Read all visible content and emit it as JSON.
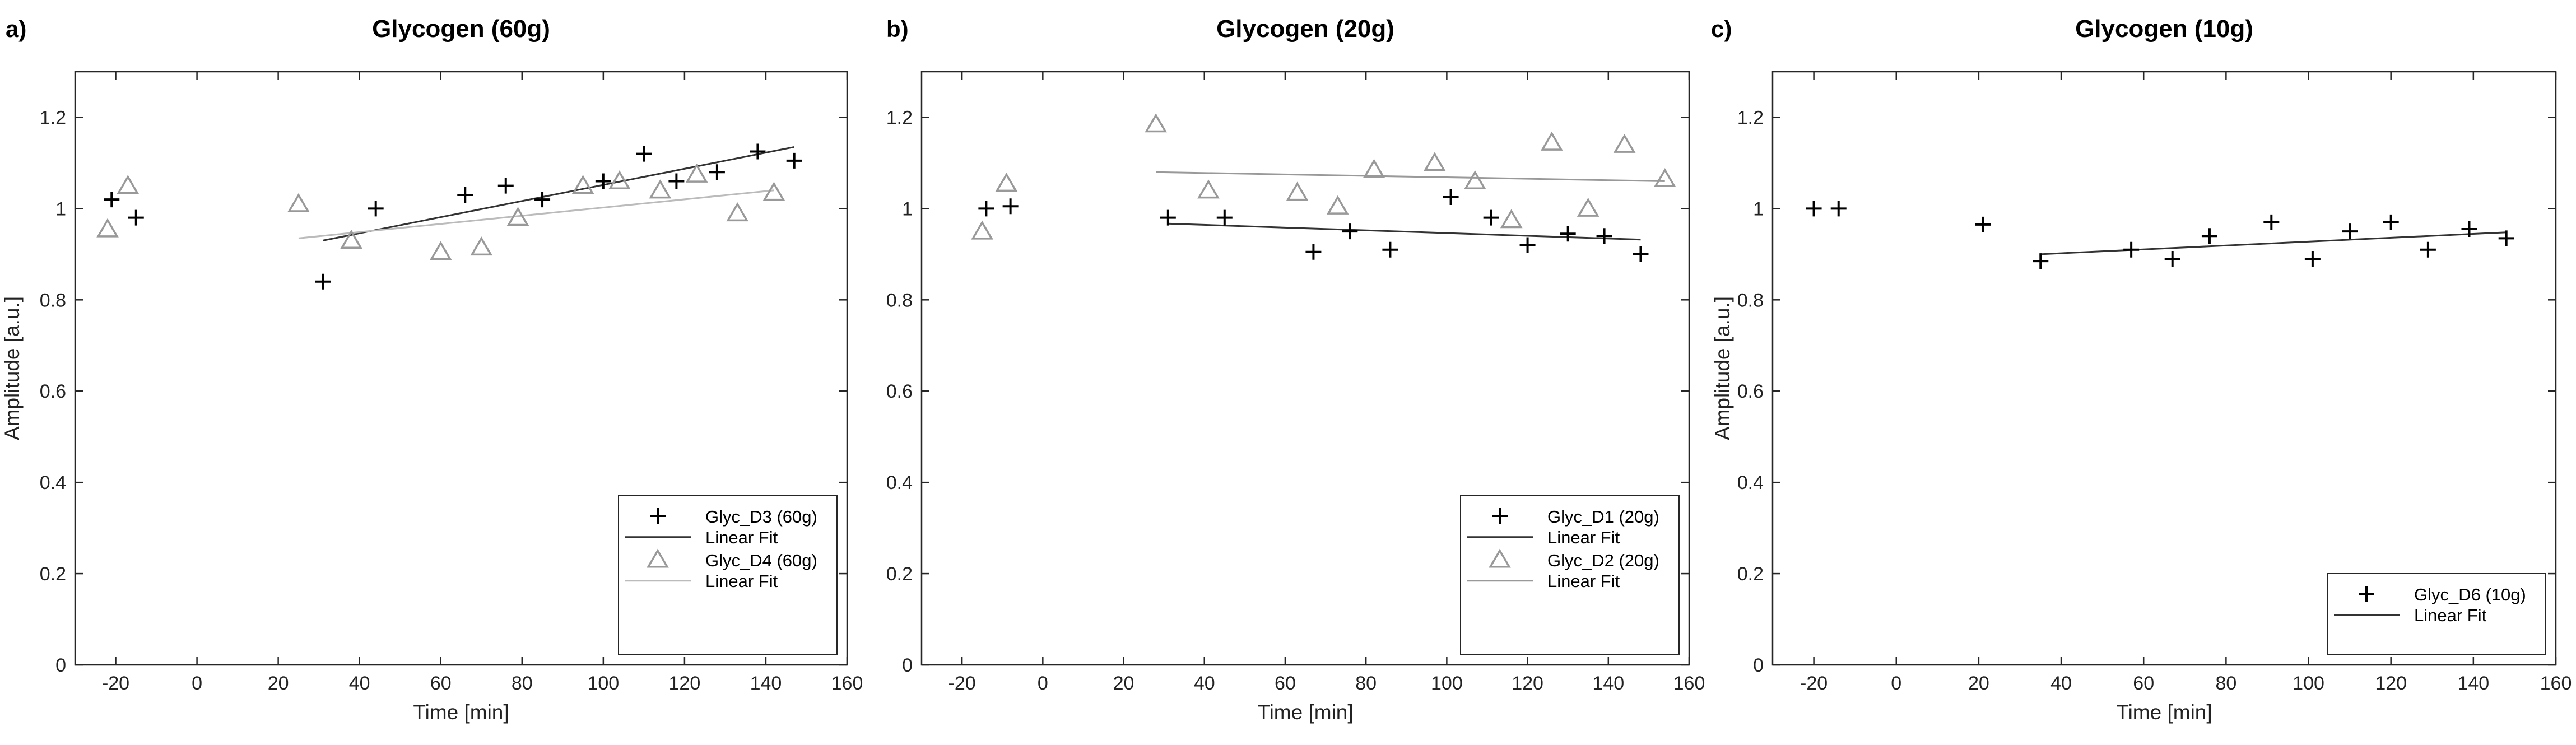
{
  "chart_data": [
    {
      "type": "scatter",
      "panel_label": "a)",
      "title": "Glycogen (60g)",
      "xlabel": "Time [min]",
      "ylabel": "Amplitude [a.u.]",
      "xlim": [
        -30,
        160
      ],
      "ylim": [
        0,
        1.3
      ],
      "xticks": [
        -20,
        0,
        20,
        40,
        60,
        80,
        100,
        120,
        140,
        160
      ],
      "yticks": [
        0,
        0.2,
        0.4,
        0.6,
        0.8,
        1,
        1.2
      ],
      "legend_position": "bottom-right",
      "series": [
        {
          "name": "Glyc_D3 (60g)",
          "marker": "plus",
          "color": "#000000",
          "x": [
            -21,
            -15,
            31,
            44,
            66,
            76,
            85,
            100,
            110,
            118,
            128,
            138,
            147
          ],
          "y": [
            1.02,
            0.98,
            0.84,
            1.0,
            1.03,
            1.05,
            1.02,
            1.06,
            1.12,
            1.06,
            1.08,
            1.125,
            1.105
          ],
          "fit": {
            "label": "Linear Fit",
            "x": [
              31,
              147
            ],
            "y": [
              0.93,
              1.135
            ],
            "color": "#333333"
          }
        },
        {
          "name": "Glyc_D4 (60g)",
          "marker": "triangle",
          "color": "#999999",
          "x": [
            -22,
            -17,
            25,
            38,
            60,
            70,
            79,
            95,
            104,
            114,
            123,
            133,
            142
          ],
          "y": [
            0.955,
            1.05,
            1.01,
            0.93,
            0.905,
            0.915,
            0.98,
            1.05,
            1.06,
            1.04,
            1.075,
            0.99,
            1.035
          ],
          "fit": {
            "label": "Linear Fit",
            "x": [
              25,
              142
            ],
            "y": [
              0.935,
              1.04
            ],
            "color": "#bbbbbb"
          }
        }
      ]
    },
    {
      "type": "scatter",
      "panel_label": "b)",
      "title": "Glycogen (20g)",
      "xlabel": "Time [min]",
      "ylabel": "",
      "xlim": [
        -30,
        160
      ],
      "ylim": [
        0,
        1.3
      ],
      "xticks": [
        -20,
        0,
        20,
        40,
        60,
        80,
        100,
        120,
        140,
        160
      ],
      "yticks": [
        0,
        0.2,
        0.4,
        0.6,
        0.8,
        1,
        1.2
      ],
      "legend_position": "bottom-right",
      "series": [
        {
          "name": "Glyc_D1 (20g)",
          "marker": "plus",
          "color": "#000000",
          "x": [
            -14,
            -8,
            31,
            45,
            67,
            76,
            86,
            101,
            111,
            120,
            130,
            139,
            148
          ],
          "y": [
            1.0,
            1.005,
            0.98,
            0.98,
            0.905,
            0.95,
            0.91,
            1.025,
            0.98,
            0.92,
            0.945,
            0.94,
            0.9
          ],
          "fit": {
            "label": "Linear Fit",
            "x": [
              31,
              148
            ],
            "y": [
              0.967,
              0.932
            ],
            "color": "#333333"
          }
        },
        {
          "name": "Glyc_D2 (20g)",
          "marker": "triangle",
          "color": "#999999",
          "x": [
            -15,
            -9,
            28,
            41,
            63,
            73,
            82,
            97,
            107,
            116,
            126,
            135,
            144,
            154
          ],
          "y": [
            0.95,
            1.055,
            1.185,
            1.04,
            1.035,
            1.005,
            1.085,
            1.1,
            1.06,
            0.975,
            1.145,
            1.0,
            1.14,
            1.065
          ],
          "fit": {
            "label": "Linear Fit",
            "x": [
              28,
              154
            ],
            "y": [
              1.08,
              1.06
            ],
            "color": "#999999"
          }
        }
      ]
    },
    {
      "type": "scatter",
      "panel_label": "c)",
      "title": "Glycogen (10g)",
      "xlabel": "Time [min]",
      "ylabel": "Amplitude [a.u.]",
      "xlim": [
        -30,
        160
      ],
      "ylim": [
        0,
        1.3
      ],
      "xticks": [
        -20,
        0,
        20,
        40,
        60,
        80,
        100,
        120,
        140,
        160
      ],
      "yticks": [
        0,
        0.2,
        0.4,
        0.6,
        0.8,
        1,
        1.2
      ],
      "legend_position": "bottom-right",
      "series": [
        {
          "name": "Glyc_D6 (10g)",
          "marker": "plus",
          "color": "#000000",
          "x": [
            -20,
            -14,
            21,
            35,
            57,
            67,
            76,
            91,
            101,
            110,
            120,
            129,
            139,
            148
          ],
          "y": [
            1.0,
            1.0,
            0.965,
            0.885,
            0.91,
            0.89,
            0.94,
            0.97,
            0.89,
            0.95,
            0.97,
            0.91,
            0.955,
            0.935
          ],
          "fit": {
            "label": "Linear Fit",
            "x": [
              35,
              148
            ],
            "y": [
              0.9,
              0.948
            ],
            "color": "#333333"
          }
        }
      ]
    }
  ]
}
